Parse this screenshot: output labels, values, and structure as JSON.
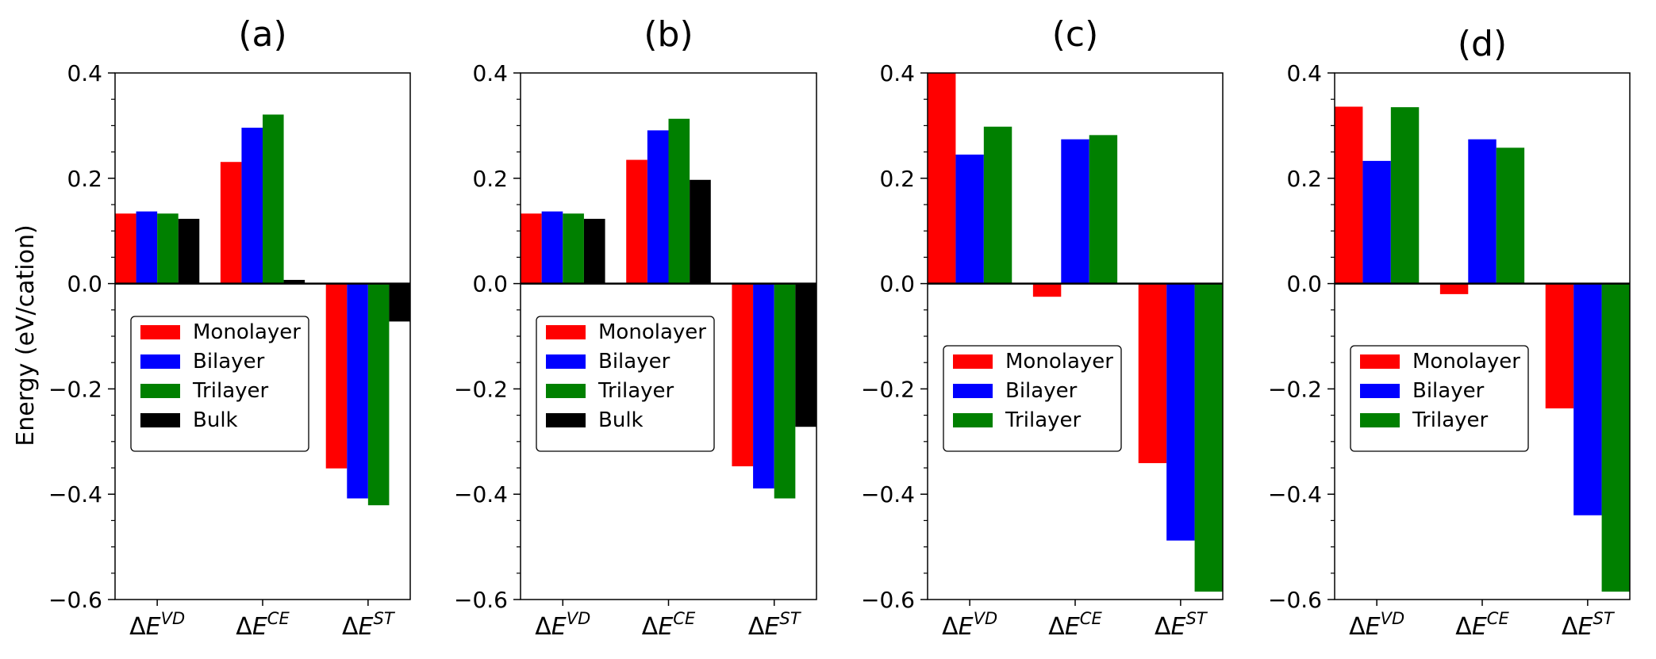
{
  "figure": {
    "ylabel": "Energy (eV/cation)",
    "colors": {
      "Monolayer": "#ff0000",
      "Bilayer": "#0000ff",
      "Trilayer": "#008000",
      "Bulk": "#000000"
    }
  },
  "chart_data": [
    {
      "type": "bar",
      "title": "(a)",
      "ylabel": "Energy (eV/cation)",
      "ylim": [
        -0.6,
        0.4
      ],
      "yticks": [
        "0.4",
        "0.2",
        "0.0",
        "−0.2",
        "−0.4",
        "−0.6"
      ],
      "categories": [
        {
          "delta": "Δ",
          "e": "E",
          "sup": "VD"
        },
        {
          "delta": "Δ",
          "e": "E",
          "sup": "CE"
        },
        {
          "delta": "Δ",
          "e": "E",
          "sup": "ST"
        }
      ],
      "legend_position": "center-left",
      "series": [
        {
          "name": "Monolayer",
          "values": [
            0.133,
            0.231,
            -0.351
          ]
        },
        {
          "name": "Bilayer",
          "values": [
            0.137,
            0.296,
            -0.408
          ]
        },
        {
          "name": "Trilayer",
          "values": [
            0.133,
            0.321,
            -0.421
          ]
        },
        {
          "name": "Bulk",
          "values": [
            0.123,
            0.007,
            -0.072
          ]
        }
      ]
    },
    {
      "type": "bar",
      "title": "(b)",
      "ylim": [
        -0.6,
        0.4
      ],
      "yticks": [
        "0.4",
        "0.2",
        "0.0",
        "−0.2",
        "−0.4",
        "−0.6"
      ],
      "categories": [
        {
          "delta": "Δ",
          "e": "E",
          "sup": "VD"
        },
        {
          "delta": "Δ",
          "e": "E",
          "sup": "CE"
        },
        {
          "delta": "Δ",
          "e": "E",
          "sup": "ST"
        }
      ],
      "legend_position": "center-left",
      "series": [
        {
          "name": "Monolayer",
          "values": [
            0.133,
            0.235,
            -0.347
          ]
        },
        {
          "name": "Bilayer",
          "values": [
            0.137,
            0.291,
            -0.389
          ]
        },
        {
          "name": "Trilayer",
          "values": [
            0.133,
            0.313,
            -0.408
          ]
        },
        {
          "name": "Bulk",
          "values": [
            0.123,
            0.197,
            -0.272
          ]
        }
      ]
    },
    {
      "type": "bar",
      "title": "(c)",
      "ylim": [
        -0.6,
        0.4
      ],
      "yticks": [
        "0.4",
        "0.2",
        "0.0",
        "−0.2",
        "−0.4",
        "−0.6"
      ],
      "categories": [
        {
          "delta": "Δ",
          "e": "E",
          "sup": "VD"
        },
        {
          "delta": "Δ",
          "e": "E",
          "sup": "CE"
        },
        {
          "delta": "Δ",
          "e": "E",
          "sup": "ST"
        }
      ],
      "legend_position": "center-left",
      "series": [
        {
          "name": "Monolayer",
          "values": [
            0.4,
            -0.025,
            -0.341
          ]
        },
        {
          "name": "Bilayer",
          "values": [
            0.245,
            0.274,
            -0.488
          ]
        },
        {
          "name": "Trilayer",
          "values": [
            0.298,
            0.282,
            -0.585
          ]
        }
      ]
    },
    {
      "type": "bar",
      "title": "(d)",
      "ylim": [
        -0.6,
        0.4
      ],
      "yticks": [
        "0.4",
        "0.2",
        "0.0",
        "−0.2",
        "−0.4",
        "−0.6"
      ],
      "categories": [
        {
          "delta": "Δ",
          "e": "E",
          "sup": "VD"
        },
        {
          "delta": "Δ",
          "e": "E",
          "sup": "CE"
        },
        {
          "delta": "Δ",
          "e": "E",
          "sup": "ST"
        }
      ],
      "legend_position": "center-left",
      "series": [
        {
          "name": "Monolayer",
          "values": [
            0.336,
            -0.02,
            -0.237
          ]
        },
        {
          "name": "Bilayer",
          "values": [
            0.233,
            0.274,
            -0.44
          ]
        },
        {
          "name": "Trilayer",
          "values": [
            0.335,
            0.258,
            -0.585
          ]
        }
      ]
    }
  ]
}
